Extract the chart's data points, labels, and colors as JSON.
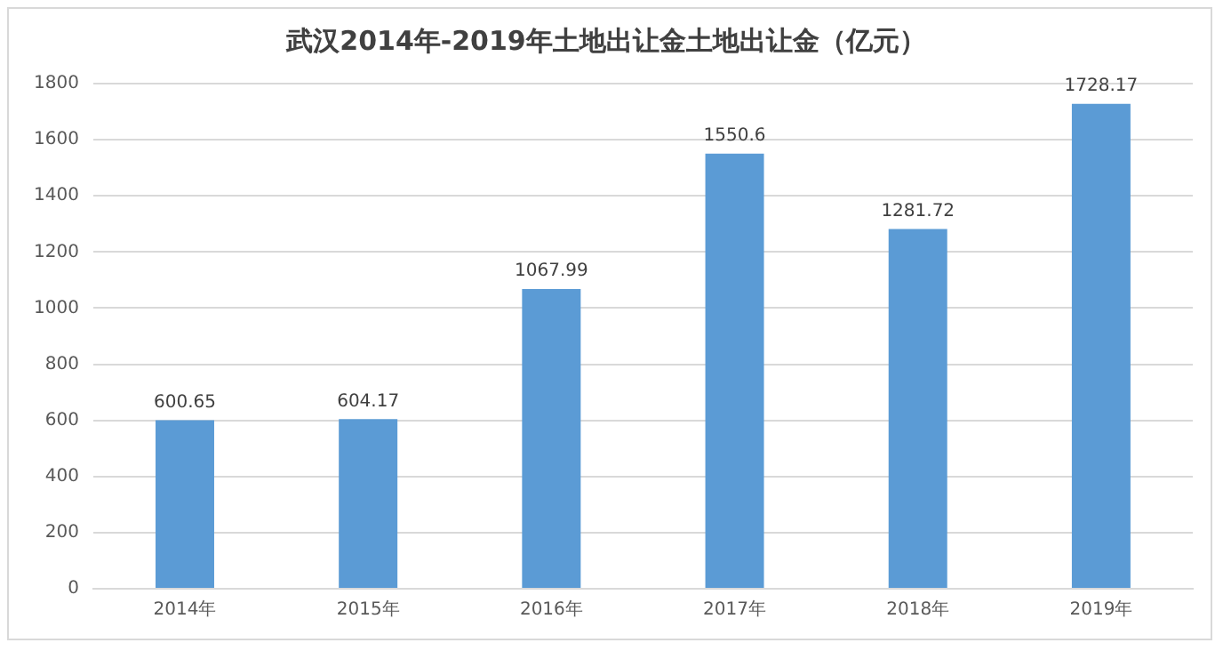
{
  "chart_data": {
    "type": "bar",
    "title": "武汉2014年-2019年土地出让金土地出让金（亿元）",
    "categories": [
      "2014年",
      "2015年",
      "2016年",
      "2017年",
      "2018年",
      "2019年"
    ],
    "values": [
      600.65,
      604.17,
      1067.99,
      1550.6,
      1281.72,
      1728.17
    ],
    "color": "#5b9bd5",
    "ylim": [
      0,
      1800
    ],
    "yticks": [
      0,
      200,
      400,
      600,
      800,
      1000,
      1200,
      1400,
      1600,
      1800
    ],
    "grid": "y",
    "data_labels": true,
    "legend": false
  }
}
